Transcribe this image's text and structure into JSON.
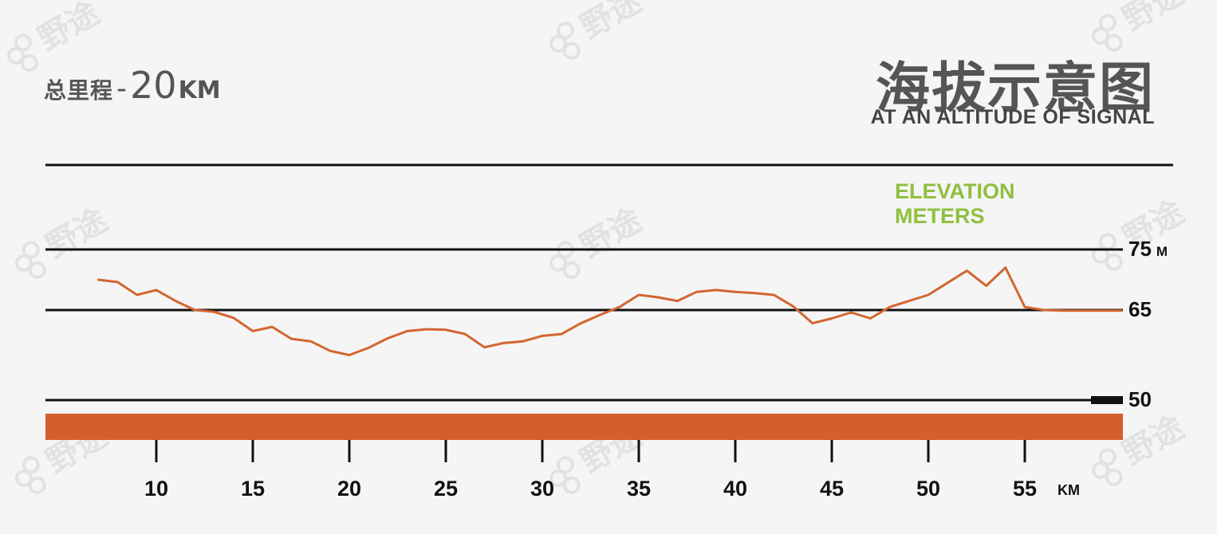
{
  "header": {
    "total_label": "总里程",
    "total_dash": "-",
    "total_value": "20",
    "total_unit": "KM",
    "title_cn": "海拔示意图",
    "title_en": "AT AN ALTITUDE OF SIGNAL"
  },
  "legend": {
    "line1": "ELEVATION",
    "line2": "METERS"
  },
  "y_axis": {
    "unit": "M",
    "ticks": [
      {
        "value": 75,
        "label": "75"
      },
      {
        "value": 65,
        "label": "65"
      },
      {
        "value": 50,
        "label": "50"
      }
    ]
  },
  "x_axis": {
    "unit": "KM",
    "ticks": [
      {
        "value": 10,
        "label": "10"
      },
      {
        "value": 15,
        "label": "15"
      },
      {
        "value": 20,
        "label": "20"
      },
      {
        "value": 25,
        "label": "25"
      },
      {
        "value": 30,
        "label": "30"
      },
      {
        "value": 35,
        "label": "35"
      },
      {
        "value": 40,
        "label": "40"
      },
      {
        "value": 45,
        "label": "45"
      },
      {
        "value": 50,
        "label": "50"
      },
      {
        "value": 55,
        "label": "55"
      }
    ]
  },
  "colors": {
    "line": "#d2662f",
    "band": "#d65d2d",
    "legend": "#8fbf3f",
    "axis": "#111111"
  },
  "watermark": "野途",
  "chart_data": {
    "type": "line",
    "title": "海拔示意图",
    "xlabel": "KM",
    "ylabel": "M",
    "xlim": [
      6,
      61
    ],
    "ylim": [
      50,
      75
    ],
    "grid": true,
    "x": [
      7,
      8,
      9,
      10,
      11,
      12,
      13,
      14,
      15,
      16,
      17,
      18,
      19,
      20,
      21,
      22,
      23,
      24,
      25,
      26,
      27,
      28,
      29,
      30,
      31,
      32,
      33,
      34,
      35,
      36,
      37,
      38,
      39,
      40,
      41,
      42,
      43,
      44,
      45,
      46,
      47,
      48,
      49,
      50,
      51,
      52,
      53,
      54,
      55,
      56,
      57,
      58,
      59,
      60
    ],
    "series": [
      {
        "values": [
          70,
          69.6,
          67.5,
          68.3,
          66.5,
          65,
          64.7,
          63.7,
          61.5,
          62.2,
          60.2,
          59.8,
          58.2,
          57.5,
          58.7,
          60.3,
          61.5,
          61.8,
          61.7,
          61.0,
          58.8,
          59.5,
          59.8,
          60.7,
          61.0,
          62.8,
          64.2,
          65.5,
          67.5,
          67.1,
          66.5,
          68.0,
          68.3,
          68.0,
          67.8,
          67.5,
          65.6,
          62.8,
          63.6,
          64.6,
          63.6,
          65.5,
          66.5,
          67.5,
          69.5,
          71.5,
          69.0,
          72.0,
          65.5,
          65.0,
          64.9,
          64.9,
          64.9,
          64.9
        ]
      }
    ]
  }
}
